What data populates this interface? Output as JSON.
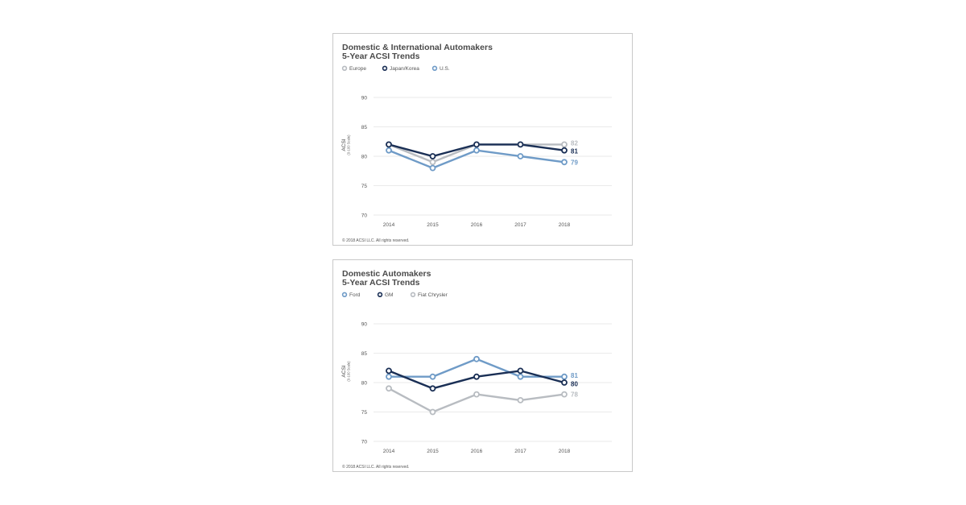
{
  "chart_data": [
    {
      "type": "line",
      "title_line1": "Domestic & International Automakers",
      "title_line2": "5-Year ACSI Trends",
      "ylabel": "ACSI",
      "ylabel_sub": "(0-100 Scale)",
      "categories": [
        "2014",
        "2015",
        "2016",
        "2017",
        "2018"
      ],
      "ylim": [
        70,
        90
      ],
      "yticks": [
        "70",
        "75",
        "80",
        "85",
        "90"
      ],
      "grid": true,
      "legend_position": "top-left",
      "series": [
        {
          "name": "Europe",
          "values": [
            82,
            79,
            82,
            82,
            82
          ],
          "color": "#b8bcc1",
          "end_label": "82"
        },
        {
          "name": "U.S.",
          "values": [
            81,
            78,
            81,
            80,
            79
          ],
          "color": "#6f9bc7",
          "end_label": "79"
        },
        {
          "name": "Japan/Korea",
          "values": [
            82,
            80,
            82,
            82,
            81
          ],
          "color": "#1a2f55",
          "end_label": "81"
        }
      ],
      "legend_order": [
        "Europe",
        "Japan/Korea",
        "U.S."
      ],
      "copyright": "© 2018 ACSI LLC. All rights reserved."
    },
    {
      "type": "line",
      "title_line1": "Domestic Automakers",
      "title_line2": "5-Year ACSI Trends",
      "ylabel": "ACSI",
      "ylabel_sub": "(0-100 Scale)",
      "categories": [
        "2014",
        "2015",
        "2016",
        "2017",
        "2018"
      ],
      "ylim": [
        70,
        90
      ],
      "yticks": [
        "70",
        "75",
        "80",
        "85",
        "90"
      ],
      "grid": true,
      "legend_position": "top-left",
      "series": [
        {
          "name": "Fiat Chrysler",
          "values": [
            79,
            75,
            78,
            77,
            78
          ],
          "color": "#b8bcc1",
          "end_label": "78"
        },
        {
          "name": "Ford",
          "values": [
            81,
            81,
            84,
            81,
            81
          ],
          "color": "#6f9bc7",
          "end_label": "81"
        },
        {
          "name": "GM",
          "values": [
            82,
            79,
            81,
            82,
            80
          ],
          "color": "#1a2f55",
          "end_label": "80"
        }
      ],
      "legend_order": [
        "Ford",
        "GM",
        "Fiat Chrysler"
      ],
      "copyright": "© 2018 ACSI LLC. All rights reserved."
    }
  ]
}
